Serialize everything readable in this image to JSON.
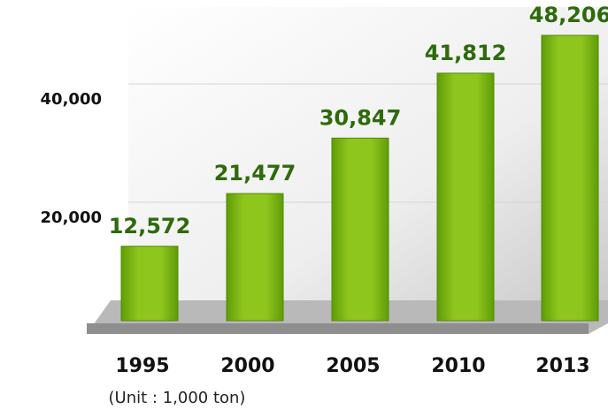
{
  "chart_data": {
    "type": "bar",
    "categories": [
      "1995",
      "2000",
      "2005",
      "2010",
      "2013"
    ],
    "values": [
      12572,
      21477,
      30847,
      41812,
      48206
    ],
    "value_labels": [
      "12,572",
      "21,477",
      "30,847",
      "41,812",
      "48,206"
    ],
    "color": "#7fb80e",
    "ylim": [
      0,
      50000
    ],
    "yticks": [
      {
        "value": 20000,
        "label": "20,000"
      },
      {
        "value": 40000,
        "label": "40,000"
      }
    ],
    "grid": true,
    "annotation": "(Unit : 1,000 ton)"
  }
}
